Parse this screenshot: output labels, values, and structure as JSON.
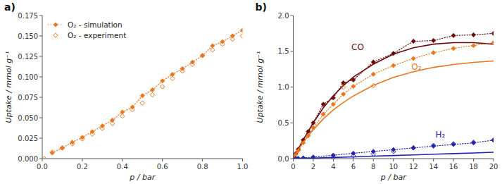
{
  "chart_data": [
    {
      "type": "line",
      "title": "a)",
      "xlabel": "p / bar",
      "ylabel": "Uptake / mmol g⁻¹",
      "xlim": [
        0.0,
        1.0
      ],
      "ylim": [
        0.0,
        0.175
      ],
      "xticks": [
        {
          "value": 0.0,
          "label": "0.0"
        },
        0.2,
        0.4,
        0.6,
        0.8,
        {
          "value": 1.0,
          "label": "1.0"
        }
      ],
      "yticks": [
        {
          "value": 0.0,
          "label": "0.000"
        },
        0.025,
        {
          "value": 0.05,
          "label": "0.050"
        },
        0.075,
        {
          "value": 0.1,
          "label": "0.100"
        },
        0.125,
        {
          "value": 0.15,
          "label": "0.150"
        },
        0.175
      ],
      "legend": "upper left",
      "series": [
        {
          "name": "O₂ - simulation",
          "type": "line",
          "line_style": "dotted",
          "marker": "diamond",
          "color": "#E87722",
          "x": [
            0.05,
            0.1,
            0.15,
            0.2,
            0.25,
            0.3,
            0.35,
            0.4,
            0.45,
            0.5,
            0.55,
            0.6,
            0.65,
            0.7,
            0.75,
            0.8,
            0.85,
            0.9,
            0.95,
            1.0
          ],
          "values": [
            0.007,
            0.013,
            0.02,
            0.026,
            0.033,
            0.04,
            0.047,
            0.057,
            0.063,
            0.077,
            0.084,
            0.095,
            0.103,
            0.11,
            0.118,
            0.126,
            0.138,
            0.143,
            0.15,
            0.157
          ]
        },
        {
          "name": "O₂ - experiment",
          "type": "scatter",
          "marker": "diamond-open",
          "color": "#E87722",
          "x": [
            0.01,
            0.05,
            0.1,
            0.15,
            0.2,
            0.25,
            0.3,
            0.35,
            0.4,
            0.45,
            0.5,
            0.55,
            0.6,
            0.65,
            0.7,
            0.75,
            0.8,
            0.85,
            0.9,
            0.95,
            1.0
          ],
          "values": [
            0.0,
            0.008,
            0.013,
            0.018,
            0.024,
            0.03,
            0.037,
            0.043,
            0.052,
            0.06,
            0.068,
            0.078,
            0.088,
            0.098,
            0.107,
            0.115,
            0.126,
            0.133,
            0.14,
            0.146,
            0.15
          ]
        }
      ]
    },
    {
      "type": "line",
      "title": "b)",
      "xlabel": "p / bar",
      "ylabel": "Uptake / mmol g⁻¹",
      "xlim": [
        0.0,
        20.0
      ],
      "ylim": [
        0.0,
        2.0
      ],
      "xticks": [
        0,
        2,
        4,
        6,
        8,
        10,
        12,
        14,
        16,
        18,
        20
      ],
      "yticks": [
        {
          "value": 0.0,
          "label": "0.0"
        },
        0.5,
        {
          "value": 1.0,
          "label": "1.0"
        },
        1.5,
        {
          "value": 2.0,
          "label": "2.0"
        }
      ],
      "series": [
        {
          "type": "line",
          "line_style": "solid",
          "color": "#6B0A0A",
          "x": [
            0.0,
            0.1,
            0.25,
            0.5,
            0.75,
            1.0,
            1.5,
            2.0,
            3.0,
            4.0,
            5.0,
            6.0,
            8.0,
            10.0,
            12.0,
            14.0,
            16.0,
            18.0,
            20.0
          ],
          "values": [
            0.0,
            0.03,
            0.07,
            0.135,
            0.2,
            0.265,
            0.38,
            0.5,
            0.71,
            0.88,
            1.02,
            1.14,
            1.32,
            1.46,
            1.55,
            1.6,
            1.62,
            1.62,
            1.6
          ]
        },
        {
          "type": "line",
          "line_style": "dotted",
          "marker": "diamond",
          "color": "#6B0A0A",
          "x": [
            0.25,
            0.5,
            1.0,
            1.5,
            2.0,
            3.0,
            4.0,
            5.0,
            6.0,
            8.0,
            10.0,
            12.0,
            14.0,
            16.0,
            18.0,
            20.0
          ],
          "values": [
            0.07,
            0.13,
            0.26,
            0.38,
            0.5,
            0.76,
            0.85,
            1.06,
            1.1,
            1.35,
            1.47,
            1.64,
            1.65,
            1.72,
            1.73,
            1.75
          ]
        },
        {
          "type": "line",
          "line_style": "solid",
          "color": "#E87722",
          "x": [
            0.0,
            0.1,
            0.25,
            0.5,
            0.75,
            1.0,
            1.5,
            2.0,
            3.0,
            4.0,
            5.0,
            6.0,
            8.0,
            10.0,
            12.0,
            14.0,
            16.0,
            18.0,
            20.0
          ],
          "values": [
            0.0,
            0.026,
            0.063,
            0.122,
            0.178,
            0.228,
            0.32,
            0.405,
            0.555,
            0.68,
            0.785,
            0.875,
            1.025,
            1.135,
            1.215,
            1.275,
            1.315,
            1.345,
            1.365
          ]
        },
        {
          "type": "line",
          "line_style": "dotted",
          "marker": "diamond",
          "color": "#E87722",
          "x": [
            0.25,
            0.5,
            1.0,
            1.5,
            2.0,
            3.0,
            4.0,
            5.0,
            6.0,
            8.0,
            10.0,
            12.0,
            14.0,
            16.0,
            18.0,
            20.0
          ],
          "values": [
            0.055,
            0.11,
            0.22,
            0.32,
            0.43,
            0.62,
            0.76,
            0.9,
            1.01,
            1.18,
            1.3,
            1.4,
            1.48,
            1.54,
            1.58,
            1.62
          ]
        },
        {
          "type": "scatter",
          "marker": "diamond-open",
          "color": "#E87722",
          "x": [
            5.0,
            8.0
          ],
          "values": [
            1.0,
            1.02
          ]
        },
        {
          "type": "line",
          "line_style": "solid",
          "color": "#2222AA",
          "x": [
            0.0,
            1.0,
            2.0,
            4.0,
            6.0,
            8.0,
            10.0,
            12.0,
            14.0,
            16.0,
            18.0,
            20.0
          ],
          "values": [
            0.0,
            0.004,
            0.008,
            0.016,
            0.025,
            0.034,
            0.043,
            0.052,
            0.061,
            0.07,
            0.079,
            0.088
          ]
        },
        {
          "type": "line",
          "line_style": "dotted",
          "marker": "diamond",
          "color": "#2222AA",
          "x": [
            0.25,
            0.5,
            1.0,
            2.0,
            4.0,
            6.0,
            8.0,
            10.0,
            12.0,
            14.0,
            16.0,
            18.0,
            20.0
          ],
          "values": [
            0.002,
            0.004,
            0.01,
            0.022,
            0.048,
            0.075,
            0.1,
            0.125,
            0.15,
            0.175,
            0.198,
            0.22,
            0.258
          ]
        },
        {
          "type": "scatter",
          "marker": "diamond-open",
          "color": "#2222AA",
          "x": [
            4.0,
            6.0,
            8.0,
            10.0,
            12.0,
            14.0,
            16.0,
            18.0,
            20.0
          ],
          "values": [
            0.018,
            0.038,
            0.065,
            0.1,
            0.15,
            0.185,
            0.207,
            0.228,
            0.258
          ]
        }
      ],
      "annotations": [
        {
          "text": "CO",
          "x": 5.8,
          "y": 1.52,
          "color": "#6B0A0A"
        },
        {
          "text": "O₂",
          "x": 11.8,
          "y": 1.24,
          "color": "#E87722"
        },
        {
          "text": "H₂",
          "x": 14.2,
          "y": 0.3,
          "color": "#2222AA"
        }
      ]
    }
  ]
}
